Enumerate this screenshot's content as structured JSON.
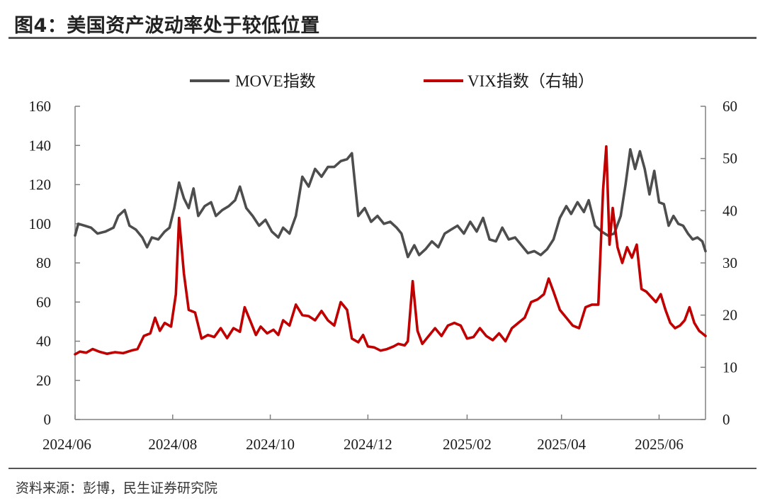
{
  "title": "图4：美国资产波动率处于较低位置",
  "source": "资料来源：彭博，民生证券研究院",
  "chart_data": {
    "type": "line",
    "x_tick_labels": [
      "2024/06",
      "2024/08",
      "2024/10",
      "2024/12",
      "2025/02",
      "2025/04",
      "2025/06"
    ],
    "x_tick_dates": [
      "2024-06-01",
      "2024-08-01",
      "2024-10-01",
      "2024-12-01",
      "2025-02-01",
      "2025-04-01",
      "2025-06-01"
    ],
    "x_range": [
      "2024-06-01",
      "2025-06-30"
    ],
    "y_left": {
      "min": 0,
      "max": 160,
      "ticks": [
        0,
        20,
        40,
        60,
        80,
        100,
        120,
        140,
        160
      ]
    },
    "y_right": {
      "min": 0,
      "max": 60,
      "ticks": [
        0,
        10,
        20,
        30,
        40,
        50,
        60
      ]
    },
    "grid": false,
    "legend_position": "top-center",
    "series": [
      {
        "name": "MOVE指数",
        "axis": "left",
        "color": "#4d4d4d",
        "points": [
          [
            "2024-06-01",
            94
          ],
          [
            "2024-06-03",
            100
          ],
          [
            "2024-06-07",
            99
          ],
          [
            "2024-06-11",
            98
          ],
          [
            "2024-06-15",
            95
          ],
          [
            "2024-06-20",
            96
          ],
          [
            "2024-06-25",
            98
          ],
          [
            "2024-06-28",
            104
          ],
          [
            "2024-07-02",
            107
          ],
          [
            "2024-07-05",
            99
          ],
          [
            "2024-07-09",
            97
          ],
          [
            "2024-07-13",
            93
          ],
          [
            "2024-07-16",
            88
          ],
          [
            "2024-07-19",
            93
          ],
          [
            "2024-07-23",
            92
          ],
          [
            "2024-07-27",
            96
          ],
          [
            "2024-07-30",
            98
          ],
          [
            "2024-08-02",
            108
          ],
          [
            "2024-08-05",
            121
          ],
          [
            "2024-08-08",
            113
          ],
          [
            "2024-08-11",
            108
          ],
          [
            "2024-08-14",
            118
          ],
          [
            "2024-08-17",
            104
          ],
          [
            "2024-08-21",
            109
          ],
          [
            "2024-08-25",
            111
          ],
          [
            "2024-08-28",
            104
          ],
          [
            "2024-09-01",
            107
          ],
          [
            "2024-09-05",
            109
          ],
          [
            "2024-09-09",
            112
          ],
          [
            "2024-09-12",
            119
          ],
          [
            "2024-09-16",
            108
          ],
          [
            "2024-09-20",
            104
          ],
          [
            "2024-09-24",
            99
          ],
          [
            "2024-09-28",
            102
          ],
          [
            "2024-10-02",
            96
          ],
          [
            "2024-10-06",
            93
          ],
          [
            "2024-10-09",
            98
          ],
          [
            "2024-10-13",
            95
          ],
          [
            "2024-10-17",
            104
          ],
          [
            "2024-10-21",
            124
          ],
          [
            "2024-10-25",
            119
          ],
          [
            "2024-10-29",
            128
          ],
          [
            "2024-11-02",
            124
          ],
          [
            "2024-11-06",
            129
          ],
          [
            "2024-11-10",
            129
          ],
          [
            "2024-11-14",
            132
          ],
          [
            "2024-11-18",
            133
          ],
          [
            "2024-11-21",
            136
          ],
          [
            "2024-11-25",
            104
          ],
          [
            "2024-11-29",
            108
          ],
          [
            "2024-12-03",
            101
          ],
          [
            "2024-12-07",
            104
          ],
          [
            "2024-12-11",
            100
          ],
          [
            "2024-12-15",
            101
          ],
          [
            "2024-12-19",
            98
          ],
          [
            "2024-12-22",
            95
          ],
          [
            "2024-12-26",
            83
          ],
          [
            "2024-12-30",
            89
          ],
          [
            "2025-01-02",
            84
          ],
          [
            "2025-01-06",
            87
          ],
          [
            "2025-01-10",
            91
          ],
          [
            "2025-01-14",
            88
          ],
          [
            "2025-01-18",
            95
          ],
          [
            "2025-01-22",
            97
          ],
          [
            "2025-01-26",
            99
          ],
          [
            "2025-01-30",
            95
          ],
          [
            "2025-02-03",
            101
          ],
          [
            "2025-02-07",
            96
          ],
          [
            "2025-02-11",
            103
          ],
          [
            "2025-02-15",
            92
          ],
          [
            "2025-02-19",
            91
          ],
          [
            "2025-02-23",
            98
          ],
          [
            "2025-02-27",
            92
          ],
          [
            "2025-03-03",
            93
          ],
          [
            "2025-03-07",
            89
          ],
          [
            "2025-03-11",
            85
          ],
          [
            "2025-03-15",
            86
          ],
          [
            "2025-03-19",
            84
          ],
          [
            "2025-03-23",
            87
          ],
          [
            "2025-03-27",
            92
          ],
          [
            "2025-03-31",
            103
          ],
          [
            "2025-04-04",
            109
          ],
          [
            "2025-04-07",
            105
          ],
          [
            "2025-04-11",
            111
          ],
          [
            "2025-04-15",
            106
          ],
          [
            "2025-04-18",
            112
          ],
          [
            "2025-04-22",
            99
          ],
          [
            "2025-04-26",
            96
          ],
          [
            "2025-04-30",
            94
          ],
          [
            "2025-05-04",
            95
          ],
          [
            "2025-05-08",
            104
          ],
          [
            "2025-05-11",
            120
          ],
          [
            "2025-05-14",
            138
          ],
          [
            "2025-05-17",
            128
          ],
          [
            "2025-05-20",
            137
          ],
          [
            "2025-05-23",
            128
          ],
          [
            "2025-05-26",
            115
          ],
          [
            "2025-05-29",
            127
          ],
          [
            "2025-06-01",
            111
          ],
          [
            "2025-06-04",
            110
          ],
          [
            "2025-06-07",
            99
          ],
          [
            "2025-06-10",
            104
          ],
          [
            "2025-06-13",
            100
          ],
          [
            "2025-06-16",
            99
          ],
          [
            "2025-06-19",
            95
          ],
          [
            "2025-06-22",
            92
          ],
          [
            "2025-06-25",
            93
          ],
          [
            "2025-06-28",
            91
          ],
          [
            "2025-06-30",
            86
          ]
        ]
      },
      {
        "name": "VIX指数（右轴）",
        "axis": "right",
        "color": "#c00000",
        "points": [
          [
            "2024-06-01",
            12.5
          ],
          [
            "2024-06-04",
            13.0
          ],
          [
            "2024-06-08",
            12.8
          ],
          [
            "2024-06-12",
            13.5
          ],
          [
            "2024-06-16",
            13.0
          ],
          [
            "2024-06-21",
            12.6
          ],
          [
            "2024-06-26",
            12.9
          ],
          [
            "2024-07-01",
            12.7
          ],
          [
            "2024-07-06",
            13.2
          ],
          [
            "2024-07-10",
            13.5
          ],
          [
            "2024-07-14",
            16.0
          ],
          [
            "2024-07-18",
            16.5
          ],
          [
            "2024-07-21",
            19.5
          ],
          [
            "2024-07-24",
            17.0
          ],
          [
            "2024-07-27",
            18.5
          ],
          [
            "2024-07-31",
            17.8
          ],
          [
            "2024-08-03",
            24.0
          ],
          [
            "2024-08-05",
            38.6
          ],
          [
            "2024-08-08",
            28.0
          ],
          [
            "2024-08-11",
            21.0
          ],
          [
            "2024-08-15",
            20.5
          ],
          [
            "2024-08-19",
            15.5
          ],
          [
            "2024-08-23",
            16.2
          ],
          [
            "2024-08-27",
            15.8
          ],
          [
            "2024-08-31",
            17.5
          ],
          [
            "2024-09-04",
            15.6
          ],
          [
            "2024-09-08",
            17.5
          ],
          [
            "2024-09-12",
            16.8
          ],
          [
            "2024-09-15",
            21.5
          ],
          [
            "2024-09-19",
            18.5
          ],
          [
            "2024-09-22",
            16.2
          ],
          [
            "2024-09-25",
            17.8
          ],
          [
            "2024-09-29",
            16.5
          ],
          [
            "2024-10-03",
            17.2
          ],
          [
            "2024-10-06",
            16.2
          ],
          [
            "2024-10-09",
            19.0
          ],
          [
            "2024-10-13",
            18.0
          ],
          [
            "2024-10-17",
            22.0
          ],
          [
            "2024-10-21",
            20.0
          ],
          [
            "2024-10-25",
            19.8
          ],
          [
            "2024-10-29",
            19.0
          ],
          [
            "2024-11-02",
            20.8
          ],
          [
            "2024-11-06",
            19.0
          ],
          [
            "2024-11-10",
            18.0
          ],
          [
            "2024-11-14",
            22.5
          ],
          [
            "2024-11-18",
            21.0
          ],
          [
            "2024-11-21",
            15.5
          ],
          [
            "2024-11-25",
            14.8
          ],
          [
            "2024-11-28",
            16.2
          ],
          [
            "2024-12-01",
            14.0
          ],
          [
            "2024-12-05",
            13.8
          ],
          [
            "2024-12-09",
            13.2
          ],
          [
            "2024-12-13",
            13.5
          ],
          [
            "2024-12-17",
            14.0
          ],
          [
            "2024-12-20",
            14.5
          ],
          [
            "2024-12-24",
            14.2
          ],
          [
            "2024-12-26",
            15.0
          ],
          [
            "2024-12-29",
            26.5
          ],
          [
            "2025-01-01",
            17.0
          ],
          [
            "2025-01-04",
            14.5
          ],
          [
            "2025-01-08",
            16.0
          ],
          [
            "2025-01-12",
            17.5
          ],
          [
            "2025-01-16",
            16.0
          ],
          [
            "2025-01-20",
            18.0
          ],
          [
            "2025-01-24",
            18.5
          ],
          [
            "2025-01-28",
            18.0
          ],
          [
            "2025-02-01",
            15.5
          ],
          [
            "2025-02-05",
            15.8
          ],
          [
            "2025-02-09",
            17.5
          ],
          [
            "2025-02-13",
            16.0
          ],
          [
            "2025-02-17",
            15.2
          ],
          [
            "2025-02-21",
            16.5
          ],
          [
            "2025-02-25",
            15.0
          ],
          [
            "2025-03-01",
            17.5
          ],
          [
            "2025-03-05",
            18.5
          ],
          [
            "2025-03-09",
            19.5
          ],
          [
            "2025-03-13",
            22.5
          ],
          [
            "2025-03-17",
            23.0
          ],
          [
            "2025-03-21",
            24.0
          ],
          [
            "2025-03-24",
            27.0
          ],
          [
            "2025-03-27",
            24.5
          ],
          [
            "2025-03-31",
            21.0
          ],
          [
            "2025-04-04",
            19.5
          ],
          [
            "2025-04-08",
            18.0
          ],
          [
            "2025-04-12",
            17.5
          ],
          [
            "2025-04-16",
            21.5
          ],
          [
            "2025-04-20",
            22.0
          ],
          [
            "2025-04-24",
            22.0
          ],
          [
            "2025-04-27",
            44.0
          ],
          [
            "2025-04-29",
            52.3
          ],
          [
            "2025-05-01",
            33.5
          ],
          [
            "2025-05-03",
            40.5
          ],
          [
            "2025-05-06",
            33.0
          ],
          [
            "2025-05-09",
            30.0
          ],
          [
            "2025-05-12",
            33.0
          ],
          [
            "2025-05-15",
            31.0
          ],
          [
            "2025-05-18",
            33.5
          ],
          [
            "2025-05-21",
            25.0
          ],
          [
            "2025-05-24",
            24.5
          ],
          [
            "2025-05-27",
            23.5
          ],
          [
            "2025-05-30",
            22.5
          ],
          [
            "2025-06-02",
            24.0
          ],
          [
            "2025-06-05",
            21.0
          ],
          [
            "2025-06-08",
            18.5
          ],
          [
            "2025-06-11",
            17.5
          ],
          [
            "2025-06-14",
            18.0
          ],
          [
            "2025-06-17",
            19.0
          ],
          [
            "2025-06-20",
            21.5
          ],
          [
            "2025-06-23",
            18.5
          ],
          [
            "2025-06-26",
            17.0
          ],
          [
            "2025-06-28",
            16.5
          ],
          [
            "2025-06-30",
            16.0
          ]
        ]
      }
    ]
  }
}
